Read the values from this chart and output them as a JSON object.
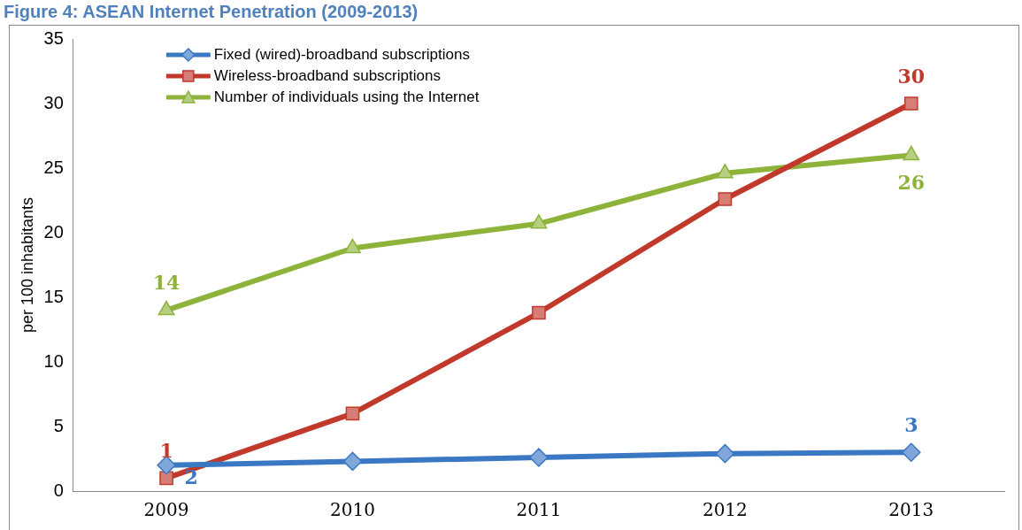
{
  "chart_data": {
    "type": "line",
    "title": "Figure 4: ASEAN Internet Penetration (2009-2013)",
    "ylabel": "per 100 inhabitants",
    "categories": [
      "2009",
      "2010",
      "2011",
      "2012",
      "2013"
    ],
    "series": [
      {
        "name": "Fixed (wired)-broadband subscriptions",
        "color": "#3b78c4",
        "marker": "diamond",
        "values": [
          2,
          2.3,
          2.6,
          2.9,
          3
        ],
        "value_labels": [
          "2",
          null,
          null,
          null,
          "3"
        ]
      },
      {
        "name": "Wireless-broadband subscriptions",
        "color": "#c0392b",
        "marker": "square",
        "values": [
          1,
          6,
          13.8,
          22.6,
          30
        ],
        "value_labels": [
          "1",
          null,
          null,
          null,
          "30"
        ]
      },
      {
        "name": "Number of individuals using the Internet",
        "color": "#8db33a",
        "marker": "triangle",
        "values": [
          14,
          18.8,
          20.7,
          24.6,
          26
        ],
        "value_labels": [
          "14",
          null,
          null,
          null,
          "26"
        ]
      }
    ],
    "ylim": [
      0,
      35
    ],
    "yticks": [
      0,
      5,
      10,
      15,
      20,
      25,
      30,
      35
    ],
    "legend": "top left"
  }
}
